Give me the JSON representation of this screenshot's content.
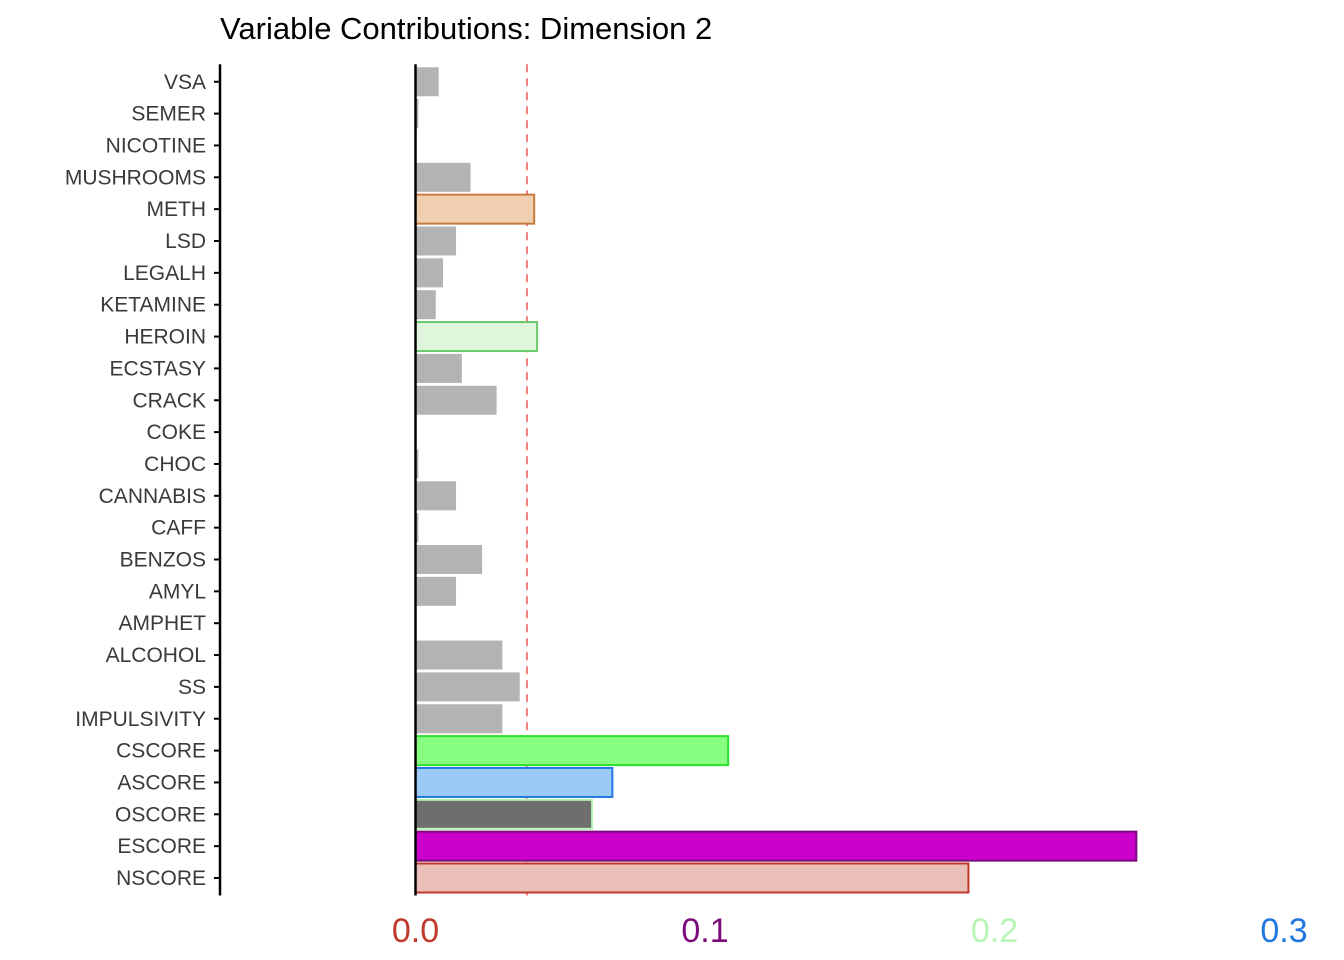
{
  "chart_data": {
    "type": "bar",
    "orientation": "horizontal",
    "title": "Variable Contributions: Dimension 2",
    "xlabel": "",
    "ylabel": "",
    "xlim": [
      -0.068,
      0.3
    ],
    "reference_line": {
      "value": 0.0385,
      "color": "#f08080",
      "style": "dashed"
    },
    "x_ticks": [
      {
        "label": "0.0",
        "value": 0.0,
        "color": "#c0392b"
      },
      {
        "label": "0.1",
        "value": 0.1,
        "color": "#7b0a7b"
      },
      {
        "label": "0.2",
        "value": 0.2,
        "color": "#b6f5b6"
      },
      {
        "label": "0.3",
        "value": 0.3,
        "color": "#1f77e0"
      }
    ],
    "categories": [
      "NSCORE",
      "ESCORE",
      "OSCORE",
      "ASCORE",
      "CSCORE",
      "IMPULSIVITY",
      "SS",
      "ALCOHOL",
      "AMPHET",
      "AMYL",
      "BENZOS",
      "CAFF",
      "CANNABIS",
      "CHOC",
      "COKE",
      "CRACK",
      "ECSTASY",
      "HEROIN",
      "KETAMINE",
      "LEGALH",
      "LSD",
      "METH",
      "MUSHROOMS",
      "NICOTINE",
      "SEMER",
      "VSA"
    ],
    "values": [
      0.191,
      0.249,
      0.061,
      0.068,
      0.108,
      0.03,
      0.036,
      0.03,
      0.0,
      0.014,
      0.023,
      0.001,
      0.014,
      0.001,
      0.0,
      0.028,
      0.016,
      0.042,
      0.007,
      0.0095,
      0.014,
      0.041,
      0.019,
      0.0,
      0.001,
      0.008
    ],
    "bar_styles": [
      {
        "fill": "#eabfb8",
        "stroke": "#c0392b"
      },
      {
        "fill": "#cc00cc",
        "stroke": "#7b0a7b"
      },
      {
        "fill": "#6e6e6e",
        "stroke": "#b6f5b6"
      },
      {
        "fill": "#9ccaf7",
        "stroke": "#1f77e0"
      },
      {
        "fill": "#88ff80",
        "stroke": "#2ee02e"
      },
      {
        "fill": "#b3b3b3",
        "stroke": "none"
      },
      {
        "fill": "#b3b3b3",
        "stroke": "none"
      },
      {
        "fill": "#b3b3b3",
        "stroke": "none"
      },
      {
        "fill": "#b3b3b3",
        "stroke": "none"
      },
      {
        "fill": "#b3b3b3",
        "stroke": "none"
      },
      {
        "fill": "#b3b3b3",
        "stroke": "none"
      },
      {
        "fill": "#b3b3b3",
        "stroke": "none"
      },
      {
        "fill": "#b3b3b3",
        "stroke": "none"
      },
      {
        "fill": "#b3b3b3",
        "stroke": "none"
      },
      {
        "fill": "#b3b3b3",
        "stroke": "none"
      },
      {
        "fill": "#b3b3b3",
        "stroke": "none"
      },
      {
        "fill": "#b3b3b3",
        "stroke": "none"
      },
      {
        "fill": "#dff5dc",
        "stroke": "#6cc86c"
      },
      {
        "fill": "#b3b3b3",
        "stroke": "none"
      },
      {
        "fill": "#b3b3b3",
        "stroke": "none"
      },
      {
        "fill": "#b3b3b3",
        "stroke": "none"
      },
      {
        "fill": "#efcfb0",
        "stroke": "#c87a3c"
      },
      {
        "fill": "#b3b3b3",
        "stroke": "none"
      },
      {
        "fill": "#b3b3b3",
        "stroke": "none"
      },
      {
        "fill": "#b3b3b3",
        "stroke": "none"
      },
      {
        "fill": "#b3b3b3",
        "stroke": "none"
      }
    ]
  }
}
